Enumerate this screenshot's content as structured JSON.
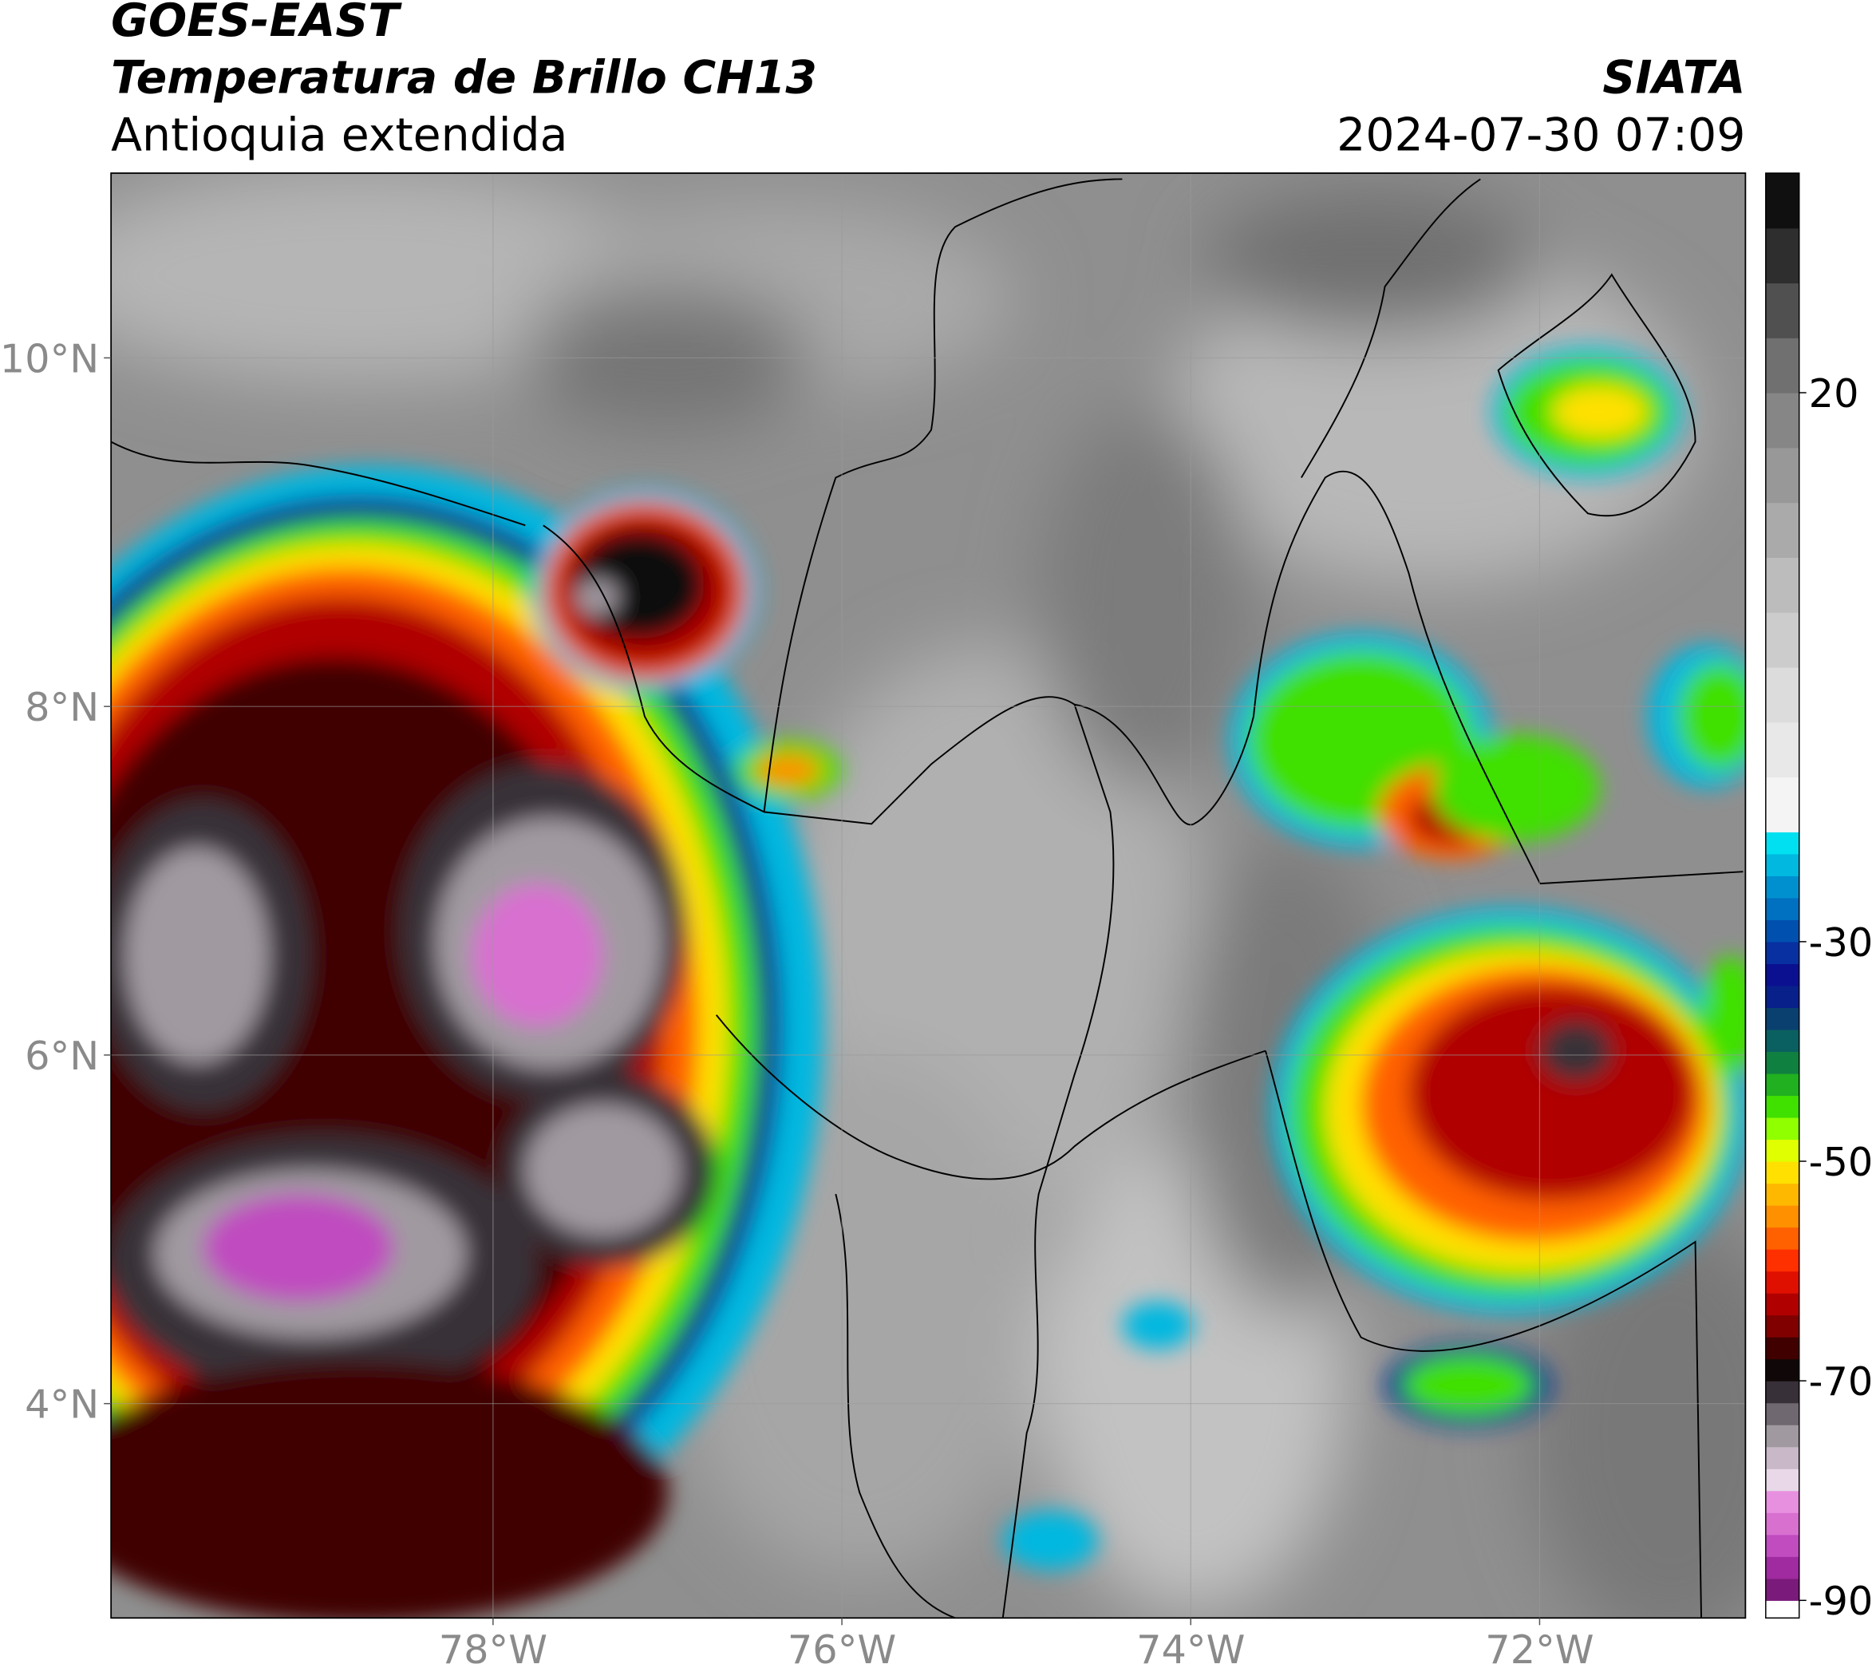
{
  "header": {
    "title": "GOES-EAST",
    "subtitle": "Temperatura de Brillo CH13",
    "region": "Antioquia extendida",
    "source": "SIATA",
    "datetime": "2024-07-30 07:09"
  },
  "map": {
    "xlim": [
      -80.19,
      -70.82
    ],
    "ylim": [
      2.77,
      11.06
    ],
    "xticks": [
      {
        "value": -78,
        "label": "78°W"
      },
      {
        "value": -76,
        "label": "76°W"
      },
      {
        "value": -74,
        "label": "74°W"
      },
      {
        "value": -72,
        "label": "72°W"
      }
    ],
    "yticks": [
      {
        "value": 10,
        "label": "10°N"
      },
      {
        "value": 8,
        "label": "8°N"
      },
      {
        "value": 6,
        "label": "6°N"
      },
      {
        "value": 4,
        "label": "4°N"
      }
    ],
    "grid": true
  },
  "colorbar": {
    "clim": [
      -91.6,
      40
    ],
    "ticks": [
      20,
      -30,
      -50,
      -70,
      -90
    ],
    "colormap": [
      {
        "value": -90,
        "color": "#ffffff"
      },
      {
        "value": -88,
        "color": "#7a1a7a"
      },
      {
        "value": -86,
        "color": "#a02aa0"
      },
      {
        "value": -84,
        "color": "#c04cc0"
      },
      {
        "value": -82,
        "color": "#d870d0"
      },
      {
        "value": -80,
        "color": "#e890e0"
      },
      {
        "value": -78,
        "color": "#e8d8e8"
      },
      {
        "value": -76,
        "color": "#c8b8c8"
      },
      {
        "value": -74,
        "color": "#a09aa0"
      },
      {
        "value": -72,
        "color": "#706870"
      },
      {
        "value": -70,
        "color": "#383038"
      },
      {
        "value": -68,
        "color": "#100808"
      },
      {
        "value": -66,
        "color": "#400000"
      },
      {
        "value": -64,
        "color": "#800000"
      },
      {
        "value": -62,
        "color": "#b00000"
      },
      {
        "value": -60,
        "color": "#e01000"
      },
      {
        "value": -58,
        "color": "#ff3000"
      },
      {
        "value": -56,
        "color": "#ff6000"
      },
      {
        "value": -54,
        "color": "#ff9000"
      },
      {
        "value": -52,
        "color": "#ffb800"
      },
      {
        "value": -50,
        "color": "#ffe000"
      },
      {
        "value": -48,
        "color": "#e0ff00"
      },
      {
        "value": -46,
        "color": "#90ff00"
      },
      {
        "value": -44,
        "color": "#40e000"
      },
      {
        "value": -42,
        "color": "#20b020"
      },
      {
        "value": -40,
        "color": "#108040"
      },
      {
        "value": -38,
        "color": "#0a6060"
      },
      {
        "value": -36,
        "color": "#0a4070"
      },
      {
        "value": -34,
        "color": "#08208a"
      },
      {
        "value": -32,
        "color": "#0a1090"
      },
      {
        "value": -30,
        "color": "#0830a0"
      },
      {
        "value": -28,
        "color": "#0050b0"
      },
      {
        "value": -26,
        "color": "#0070c0"
      },
      {
        "value": -24,
        "color": "#0090d0"
      },
      {
        "value": -22,
        "color": "#00b8e0"
      },
      {
        "value": -20,
        "color": "#00e0f0"
      },
      {
        "value": -15,
        "color": "#f4f4f4"
      },
      {
        "value": -10,
        "color": "#e8e8e8"
      },
      {
        "value": -5,
        "color": "#dcdcdc"
      },
      {
        "value": 0,
        "color": "#cccccc"
      },
      {
        "value": 5,
        "color": "#bcbcbc"
      },
      {
        "value": 10,
        "color": "#aaaaaa"
      },
      {
        "value": 15,
        "color": "#989898"
      },
      {
        "value": 20,
        "color": "#868686"
      },
      {
        "value": 25,
        "color": "#707070"
      },
      {
        "value": 30,
        "color": "#505050"
      },
      {
        "value": 35,
        "color": "#2e2e2e"
      },
      {
        "value": 40,
        "color": "#101010"
      }
    ]
  }
}
